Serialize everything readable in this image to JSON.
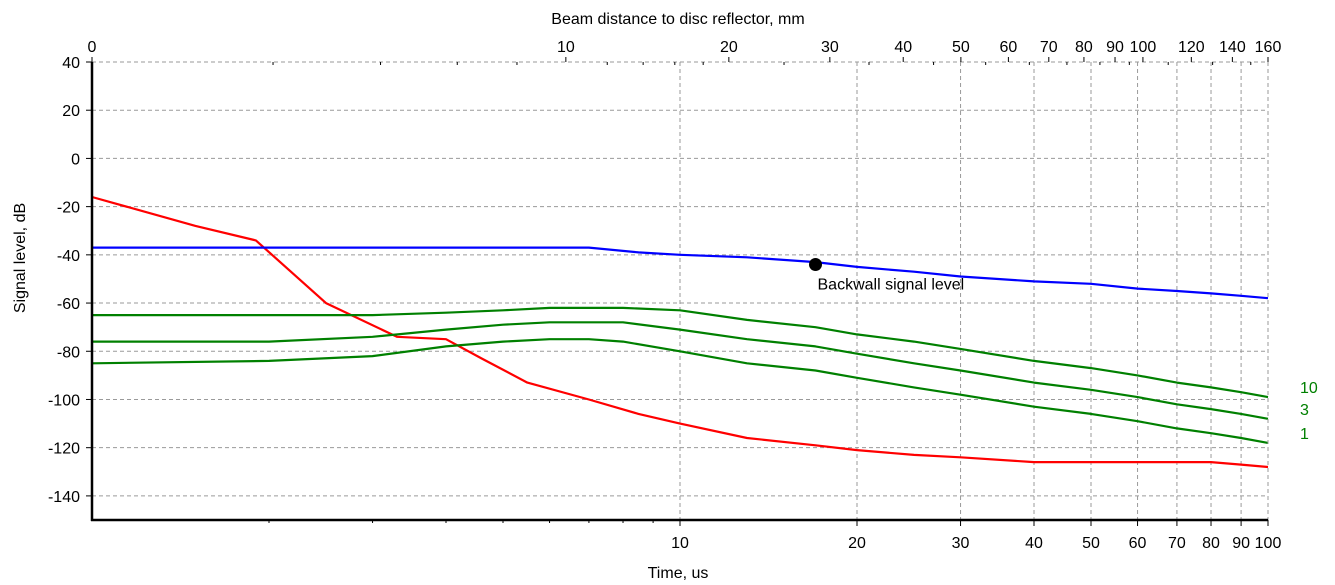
{
  "chart_data": {
    "type": "line",
    "title": "",
    "top_axis": {
      "label": "Beam distance to disc reflector, mm",
      "ticks": [
        0,
        10,
        20,
        30,
        40,
        50,
        60,
        70,
        80,
        90,
        100,
        120,
        140,
        160
      ],
      "tick_labels": [
        "0",
        "10",
        "20",
        "30",
        "40",
        "50",
        "60",
        "70",
        "80",
        "90",
        "100",
        "120",
        "140",
        "160"
      ]
    },
    "xlabel": "Time, us",
    "ylabel": "Signal level, dB",
    "x_scale": "log",
    "xlim": [
      1,
      100
    ],
    "ylim": [
      -150,
      40
    ],
    "x_ticks": [
      10,
      20,
      30,
      40,
      50,
      60,
      70,
      80,
      90,
      100
    ],
    "x_tick_labels": [
      "10",
      "20",
      "30",
      "40",
      "50",
      "60",
      "70",
      "80",
      "90",
      "100"
    ],
    "y_ticks": [
      40,
      20,
      0,
      -20,
      -40,
      -60,
      -80,
      -100,
      -120,
      -140
    ],
    "y_tick_labels": [
      "40",
      "20",
      "0",
      "-20",
      "-40",
      "-60",
      "-80",
      "-100",
      "-120",
      "-140"
    ],
    "grid": true,
    "series": [
      {
        "name": "",
        "color": "#ff0000",
        "x": [
          1,
          1.5,
          1.9,
          2.5,
          3.3,
          4.0,
          4.6,
          5.5,
          7.0,
          8.5,
          10,
          13,
          17,
          20,
          25,
          30,
          40,
          50,
          60,
          70,
          80,
          90,
          100
        ],
        "y": [
          -16,
          -28,
          -34,
          -60,
          -74,
          -75,
          -83,
          -93,
          -100,
          -106,
          -110,
          -116,
          -119,
          -121,
          -123,
          -124,
          -126,
          -126,
          -126,
          -126,
          -126,
          -127,
          -128
        ]
      },
      {
        "name": "Backwall signal level",
        "color": "#0000ff",
        "x": [
          1,
          2,
          3,
          5,
          7,
          8.5,
          10,
          13,
          17,
          20,
          25,
          30,
          40,
          50,
          60,
          70,
          80,
          90,
          100
        ],
        "y": [
          -37,
          -37,
          -37,
          -37,
          -37,
          -39,
          -40,
          -41,
          -43,
          -45,
          -47,
          -49,
          -51,
          -52,
          -54,
          -55,
          -56,
          -57,
          -58
        ]
      },
      {
        "name": "10",
        "color": "#008000",
        "x": [
          1,
          2,
          3,
          4,
          5,
          6,
          7,
          8,
          10,
          13,
          17,
          20,
          25,
          30,
          40,
          50,
          60,
          70,
          80,
          90,
          100
        ],
        "y": [
          -65,
          -65,
          -65,
          -64,
          -63,
          -62,
          -62,
          -62,
          -63,
          -67,
          -70,
          -73,
          -76,
          -79,
          -84,
          -87,
          -90,
          -93,
          -95,
          -97,
          -99
        ]
      },
      {
        "name": "3",
        "color": "#008000",
        "x": [
          1,
          2,
          3,
          4,
          5,
          6,
          7,
          8,
          10,
          13,
          17,
          20,
          25,
          30,
          40,
          50,
          60,
          70,
          80,
          90,
          100
        ],
        "y": [
          -76,
          -76,
          -74,
          -71,
          -69,
          -68,
          -68,
          -68,
          -71,
          -75,
          -78,
          -81,
          -85,
          -88,
          -93,
          -96,
          -99,
          -102,
          -104,
          -106,
          -108
        ]
      },
      {
        "name": "1",
        "color": "#008000",
        "x": [
          1,
          2,
          3,
          4,
          5,
          6,
          7,
          8,
          10,
          13,
          17,
          20,
          25,
          30,
          40,
          50,
          60,
          70,
          80,
          90,
          100
        ],
        "y": [
          -85,
          -84,
          -82,
          -78,
          -76,
          -75,
          -75,
          -76,
          -80,
          -85,
          -88,
          -91,
          -95,
          -98,
          -103,
          -106,
          -109,
          -112,
          -114,
          -116,
          -118
        ]
      }
    ],
    "marker": {
      "x": 17,
      "y": -44,
      "label": "Backwall signal level"
    },
    "curve_labels": [
      {
        "text": "10",
        "y": -99
      },
      {
        "text": "3",
        "y": -108
      },
      {
        "text": "1",
        "y": -118
      }
    ],
    "curve_label_color": "#008000"
  }
}
